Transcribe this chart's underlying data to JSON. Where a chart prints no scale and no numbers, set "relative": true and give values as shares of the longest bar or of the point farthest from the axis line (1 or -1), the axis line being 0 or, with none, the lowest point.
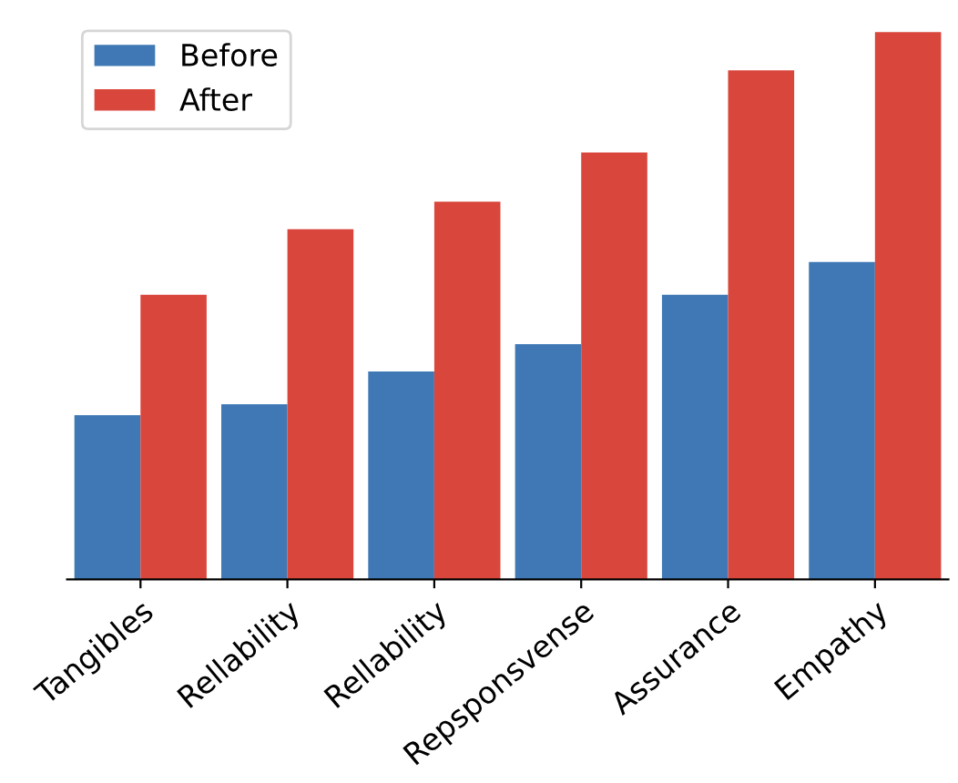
{
  "chart_data": {
    "type": "bar",
    "relative": true,
    "legend": "top left",
    "categories": [
      "Tangibles",
      "Rellability",
      "Rellability",
      "Repsponsvense",
      "Assurance",
      "Empathy"
    ],
    "series": [
      {
        "name": "Before",
        "color": "#3f78b5",
        "values": [
          0.3,
          0.32,
          0.38,
          0.43,
          0.52,
          0.58
        ]
      },
      {
        "name": "After",
        "color": "#d9463b",
        "values": [
          0.52,
          0.64,
          0.69,
          0.78,
          0.93,
          1.0
        ]
      }
    ]
  }
}
